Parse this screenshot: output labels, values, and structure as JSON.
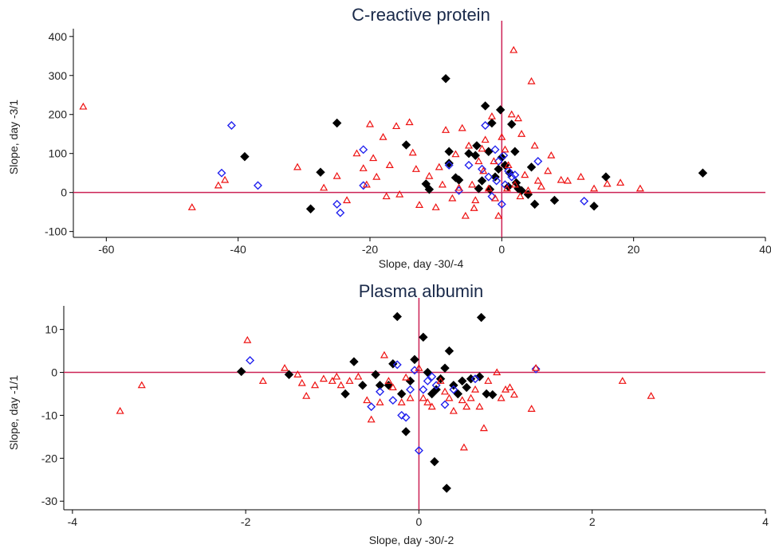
{
  "chart_data": [
    {
      "type": "scatter",
      "title": "C-reactive protein",
      "xlabel": "Slope, day -30/-4",
      "ylabel": "Slope, day -3/1",
      "xlim": [
        -65,
        40
      ],
      "ylim": [
        -115,
        420
      ],
      "xticks": [
        -60,
        -40,
        -20,
        0,
        20,
        40
      ],
      "yticks": [
        -100,
        0,
        100,
        200,
        300,
        400
      ],
      "reference_lines": {
        "x": 0,
        "y": 0,
        "color": "#cc2255"
      },
      "series": [
        {
          "marker": "diamond-filled",
          "color": "#000000",
          "points": [
            [
              -39,
              92
            ],
            [
              -29,
              -42
            ],
            [
              -27.5,
              52
            ],
            [
              -25,
              178
            ],
            [
              -14.5,
              122
            ],
            [
              -11.5,
              22
            ],
            [
              -11,
              8
            ],
            [
              -8.5,
              292
            ],
            [
              -8,
              105
            ],
            [
              -8,
              75
            ],
            [
              -7,
              38
            ],
            [
              -6.5,
              32
            ],
            [
              -5,
              100
            ],
            [
              -4,
              95
            ],
            [
              -3.8,
              120
            ],
            [
              -3,
              30
            ],
            [
              -2.5,
              222
            ],
            [
              -2,
              105
            ],
            [
              -1.8,
              8
            ],
            [
              -1.5,
              178
            ],
            [
              -0.5,
              60
            ],
            [
              -0.2,
              212
            ],
            [
              0,
              90
            ],
            [
              0.5,
              70
            ],
            [
              1,
              15
            ],
            [
              1.2,
              50
            ],
            [
              1.5,
              175
            ],
            [
              2,
              105
            ],
            [
              2.5,
              10
            ],
            [
              4,
              -5
            ],
            [
              4.5,
              65
            ],
            [
              5,
              -30
            ],
            [
              8,
              -20
            ],
            [
              14,
              -35
            ],
            [
              15.8,
              40
            ],
            [
              30.5,
              50
            ],
            [
              -3.5,
              10
            ],
            [
              -1,
              40
            ],
            [
              2.2,
              25
            ],
            [
              3,
              5
            ]
          ]
        },
        {
          "marker": "diamond-hollow",
          "color": "#2222ee",
          "points": [
            [
              -41,
              172
            ],
            [
              -42.5,
              50
            ],
            [
              -37,
              18
            ],
            [
              -25,
              -30
            ],
            [
              -24.5,
              -52
            ],
            [
              -21,
              110
            ],
            [
              -21,
              18
            ],
            [
              -8,
              70
            ],
            [
              -6.5,
              5
            ],
            [
              -5,
              70
            ],
            [
              -2.5,
              172
            ],
            [
              -2,
              40
            ],
            [
              -1,
              110
            ],
            [
              -0.5,
              80
            ],
            [
              0,
              -30
            ],
            [
              0.5,
              20
            ],
            [
              1,
              55
            ],
            [
              1.5,
              40
            ],
            [
              2,
              45
            ],
            [
              5.5,
              80
            ],
            [
              12.5,
              -22
            ],
            [
              -1.5,
              -10
            ],
            [
              -0.8,
              30
            ],
            [
              0.3,
              95
            ],
            [
              -3,
              60
            ]
          ]
        },
        {
          "marker": "triangle-hollow",
          "color": "#ee1111",
          "points": [
            [
              -63.5,
              220
            ],
            [
              -47,
              -38
            ],
            [
              -43,
              18
            ],
            [
              -42,
              32
            ],
            [
              -31,
              65
            ],
            [
              -27,
              12
            ],
            [
              -25,
              42
            ],
            [
              -23.5,
              -20
            ],
            [
              -22,
              100
            ],
            [
              -21,
              62
            ],
            [
              -20.5,
              20
            ],
            [
              -20,
              175
            ],
            [
              -19.5,
              88
            ],
            [
              -19,
              40
            ],
            [
              -18,
              142
            ],
            [
              -17.5,
              -10
            ],
            [
              -17,
              70
            ],
            [
              -16,
              170
            ],
            [
              -15.5,
              -5
            ],
            [
              -14,
              180
            ],
            [
              -13.5,
              102
            ],
            [
              -13,
              60
            ],
            [
              -12.5,
              -32
            ],
            [
              -11,
              42
            ],
            [
              -10,
              -38
            ],
            [
              -9.5,
              65
            ],
            [
              -9,
              20
            ],
            [
              -8.5,
              160
            ],
            [
              -7.5,
              -15
            ],
            [
              -7,
              98
            ],
            [
              -6.5,
              12
            ],
            [
              -6,
              165
            ],
            [
              -5.5,
              -60
            ],
            [
              -5,
              120
            ],
            [
              -4.5,
              20
            ],
            [
              -4,
              -20
            ],
            [
              -3.5,
              80
            ],
            [
              -3,
              112
            ],
            [
              -2.5,
              135
            ],
            [
              -2,
              10
            ],
            [
              -1.5,
              195
            ],
            [
              -1,
              -15
            ],
            [
              -0.5,
              -60
            ],
            [
              0,
              142
            ],
            [
              0.5,
              110
            ],
            [
              1,
              70
            ],
            [
              1.5,
              200
            ],
            [
              1.8,
              365
            ],
            [
              2,
              20
            ],
            [
              2.5,
              190
            ],
            [
              3,
              150
            ],
            [
              3.5,
              45
            ],
            [
              4,
              5
            ],
            [
              4.5,
              285
            ],
            [
              5,
              120
            ],
            [
              5.5,
              30
            ],
            [
              6,
              15
            ],
            [
              7,
              55
            ],
            [
              7.5,
              95
            ],
            [
              9,
              32
            ],
            [
              10,
              30
            ],
            [
              12,
              40
            ],
            [
              14,
              10
            ],
            [
              16,
              22
            ],
            [
              18,
              25
            ],
            [
              21,
              10
            ],
            [
              -2.8,
              55
            ],
            [
              -1.2,
              80
            ],
            [
              0.8,
              10
            ],
            [
              2.8,
              -10
            ],
            [
              -4.2,
              -40
            ]
          ]
        }
      ]
    },
    {
      "type": "scatter",
      "title": "Plasma albumin",
      "xlabel": "Slope, day -30/-2",
      "ylabel": "Slope, day -1/1",
      "xlim": [
        -4.1,
        4.0
      ],
      "ylim": [
        -32,
        15.5
      ],
      "xticks": [
        -4,
        -2,
        0,
        2,
        4
      ],
      "yticks": [
        -30,
        -20,
        -10,
        0,
        10
      ],
      "reference_lines": {
        "x": 0,
        "y": 0,
        "color": "#cc2255"
      },
      "series": [
        {
          "marker": "diamond-filled",
          "color": "#000000",
          "points": [
            [
              -2.05,
              0.2
            ],
            [
              -1.5,
              -0.5
            ],
            [
              -0.85,
              -5
            ],
            [
              -0.75,
              2.5
            ],
            [
              -0.65,
              -3
            ],
            [
              -0.5,
              -0.5
            ],
            [
              -0.45,
              -3
            ],
            [
              -0.3,
              2
            ],
            [
              -0.25,
              13
            ],
            [
              -0.2,
              -5
            ],
            [
              -0.15,
              -13.8
            ],
            [
              -0.1,
              -2
            ],
            [
              -0.05,
              3
            ],
            [
              0.05,
              8.2
            ],
            [
              0.1,
              0
            ],
            [
              0.15,
              -5
            ],
            [
              0.2,
              -4
            ],
            [
              0.3,
              1
            ],
            [
              0.35,
              5
            ],
            [
              0.4,
              -3
            ],
            [
              0.45,
              -5
            ],
            [
              0.5,
              -2
            ],
            [
              0.55,
              -3.5
            ],
            [
              0.6,
              -1.5
            ],
            [
              0.7,
              -1
            ],
            [
              0.72,
              12.8
            ],
            [
              0.78,
              -5
            ],
            [
              0.85,
              -5.2
            ],
            [
              0.18,
              -20.8
            ],
            [
              0.32,
              -27
            ],
            [
              -0.35,
              -3
            ],
            [
              0.25,
              -1.5
            ]
          ]
        },
        {
          "marker": "diamond-hollow",
          "color": "#2222ee",
          "points": [
            [
              -1.95,
              2.8
            ],
            [
              -0.55,
              -8
            ],
            [
              -0.45,
              -4.5
            ],
            [
              -0.3,
              -6.5
            ],
            [
              -0.25,
              1.8
            ],
            [
              -0.2,
              -10
            ],
            [
              -0.15,
              -10.5
            ],
            [
              -0.1,
              -4
            ],
            [
              0,
              -18.2
            ],
            [
              0.05,
              -4
            ],
            [
              0.1,
              -2
            ],
            [
              0.2,
              -3
            ],
            [
              0.3,
              -7.5
            ],
            [
              0.4,
              -4
            ],
            [
              0.65,
              -1.5
            ],
            [
              1.35,
              0.8
            ],
            [
              -0.05,
              0.5
            ],
            [
              0.15,
              -1
            ]
          ]
        },
        {
          "marker": "triangle-hollow",
          "color": "#ee1111",
          "points": [
            [
              -3.45,
              -9
            ],
            [
              -3.2,
              -3
            ],
            [
              -1.98,
              7.5
            ],
            [
              -1.8,
              -2
            ],
            [
              -1.55,
              1
            ],
            [
              -1.4,
              -0.5
            ],
            [
              -1.35,
              -2.5
            ],
            [
              -1.3,
              -5.5
            ],
            [
              -1.2,
              -3
            ],
            [
              -1.1,
              -1.5
            ],
            [
              -1.0,
              -2
            ],
            [
              -0.95,
              -1
            ],
            [
              -0.9,
              -3
            ],
            [
              -0.8,
              -2
            ],
            [
              -0.7,
              -1
            ],
            [
              -0.6,
              -6.5
            ],
            [
              -0.55,
              -11
            ],
            [
              -0.45,
              -7
            ],
            [
              -0.4,
              4
            ],
            [
              -0.35,
              -2
            ],
            [
              -0.3,
              -3.5
            ],
            [
              -0.2,
              -7
            ],
            [
              -0.1,
              -6
            ],
            [
              0,
              1
            ],
            [
              0.05,
              -6
            ],
            [
              0.1,
              -7
            ],
            [
              0.15,
              -8
            ],
            [
              0.25,
              -2
            ],
            [
              0.35,
              -6
            ],
            [
              0.4,
              -9
            ],
            [
              0.5,
              -6.5
            ],
            [
              0.55,
              -8
            ],
            [
              0.6,
              -6
            ],
            [
              0.65,
              -4
            ],
            [
              0.7,
              -8
            ],
            [
              0.75,
              -13
            ],
            [
              0.8,
              -2
            ],
            [
              0.9,
              0
            ],
            [
              0.95,
              -6
            ],
            [
              1.0,
              -4
            ],
            [
              1.05,
              -3.5
            ],
            [
              1.1,
              -5.2
            ],
            [
              1.3,
              -8.5
            ],
            [
              1.35,
              1
            ],
            [
              0.52,
              -17.5
            ],
            [
              2.35,
              -2
            ],
            [
              2.68,
              -5.5
            ],
            [
              -0.15,
              -1.2
            ],
            [
              0.3,
              -4.5
            ]
          ]
        }
      ]
    }
  ]
}
